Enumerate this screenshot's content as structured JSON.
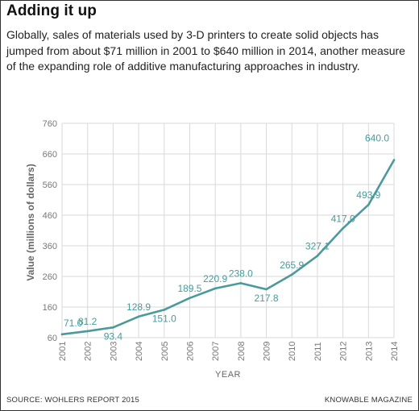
{
  "header": {
    "title": "Adding it up",
    "subtitle": "Globally, sales of materials used by 3-D printers to create solid objects has jumped from about $71 million in 2001 to $640 million in 2014, another measure of the expanding role of additive manufacturing approaches in industry."
  },
  "footer": {
    "source": "SOURCE: WOHLERS REPORT 2015",
    "brand": "KNOWABLE MAGAZINE"
  },
  "colors": {
    "line": "#4a9a9c",
    "label": "#4a9a9c",
    "grid": "#d9d9d9",
    "axis_text": "#777777"
  },
  "chart_data": {
    "type": "line",
    "title": "",
    "xlabel": "YEAR",
    "ylabel": "Value (millions of dollars)",
    "x": [
      "2001",
      "2002",
      "2003",
      "2004",
      "2005",
      "2006",
      "2007",
      "2008",
      "2009",
      "2010",
      "2011",
      "2012",
      "2013",
      "2014"
    ],
    "series": [
      {
        "values": [
          71.0,
          81.2,
          93.4,
          128.9,
          151.0,
          189.5,
          220.9,
          238.0,
          217.8,
          265.9,
          327.1,
          417.0,
          493.9,
          640.0
        ],
        "labels": [
          "71.0",
          "81.2",
          "93.4",
          "128.9",
          "151.0",
          "189.5",
          "220.9",
          "238.0",
          "217.8",
          "265.9",
          "327.1",
          "417.0",
          "493.9",
          "640.0"
        ]
      }
    ],
    "ylim": [
      60,
      760
    ],
    "yticks": [
      "60",
      "160",
      "260",
      "360",
      "460",
      "560",
      "660",
      "760"
    ],
    "grid": true,
    "legend": "none"
  }
}
